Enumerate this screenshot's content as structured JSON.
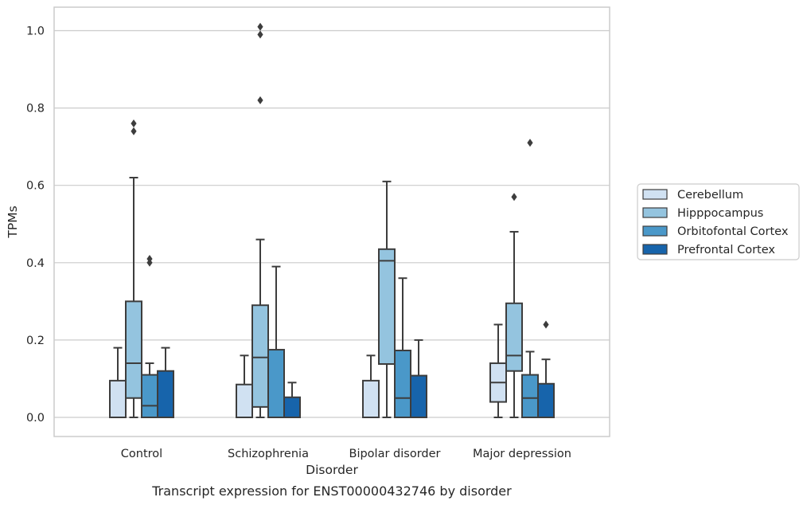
{
  "chart_data": {
    "type": "box",
    "xlabel": "Disorder",
    "ylabel": "TPMs",
    "caption": "Transcript expression for ENST00000432746 by disorder",
    "ylim": [
      -0.05,
      1.06
    ],
    "yticks": [
      "0.0",
      "0.2",
      "0.4",
      "0.6",
      "0.8",
      "1.0"
    ],
    "grid": "horizontal",
    "legend_position": "right",
    "categories": [
      "Control",
      "Schizophrenia",
      "Bipolar disorder",
      "Major depression"
    ],
    "series": [
      {
        "name": "Cerebellum",
        "color": "#d0e1f2",
        "boxes": [
          {
            "min": 0,
            "q1": 0,
            "median": 0,
            "q3": 0.095,
            "max": 0.18,
            "outliers": []
          },
          {
            "min": 0,
            "q1": 0,
            "median": 0,
            "q3": 0.085,
            "max": 0.16,
            "outliers": []
          },
          {
            "min": 0,
            "q1": 0,
            "median": 0,
            "q3": 0.095,
            "max": 0.16,
            "outliers": []
          },
          {
            "min": 0,
            "q1": 0.04,
            "median": 0.09,
            "q3": 0.14,
            "max": 0.24,
            "outliers": []
          }
        ]
      },
      {
        "name": "Hipppocampus",
        "color": "#94c4df",
        "boxes": [
          {
            "min": 0,
            "q1": 0.05,
            "median": 0.14,
            "q3": 0.3,
            "max": 0.62,
            "outliers": [
              0.74,
              0.76
            ]
          },
          {
            "min": 0,
            "q1": 0.027,
            "median": 0.155,
            "q3": 0.29,
            "max": 0.46,
            "outliers": [
              0.82,
              0.99,
              1.01
            ]
          },
          {
            "min": 0,
            "q1": 0.138,
            "median": 0.405,
            "q3": 0.435,
            "max": 0.61,
            "outliers": []
          },
          {
            "min": 0,
            "q1": 0.12,
            "median": 0.16,
            "q3": 0.295,
            "max": 0.48,
            "outliers": [
              0.57
            ]
          }
        ]
      },
      {
        "name": "Orbitofontal Cortex",
        "color": "#4a98c9",
        "boxes": [
          {
            "min": 0,
            "q1": 0,
            "median": 0.03,
            "q3": 0.11,
            "max": 0.14,
            "outliers": [
              0.4,
              0.41
            ]
          },
          {
            "min": 0,
            "q1": 0,
            "median": 0,
            "q3": 0.175,
            "max": 0.39,
            "outliers": []
          },
          {
            "min": 0,
            "q1": 0,
            "median": 0.05,
            "q3": 0.173,
            "max": 0.36,
            "outliers": []
          },
          {
            "min": 0,
            "q1": 0,
            "median": 0.05,
            "q3": 0.11,
            "max": 0.17,
            "outliers": [
              0.71
            ]
          }
        ]
      },
      {
        "name": "Prefrontal Cortex",
        "color": "#1764ab",
        "boxes": [
          {
            "min": 0,
            "q1": 0,
            "median": 0,
            "q3": 0.12,
            "max": 0.18,
            "outliers": []
          },
          {
            "min": 0,
            "q1": 0,
            "median": 0,
            "q3": 0.052,
            "max": 0.09,
            "outliers": []
          },
          {
            "min": 0,
            "q1": 0,
            "median": 0,
            "q3": 0.108,
            "max": 0.2,
            "outliers": []
          },
          {
            "min": 0,
            "q1": 0,
            "median": 0,
            "q3": 0.087,
            "max": 0.15,
            "outliers": [
              0.24
            ]
          }
        ]
      }
    ]
  }
}
